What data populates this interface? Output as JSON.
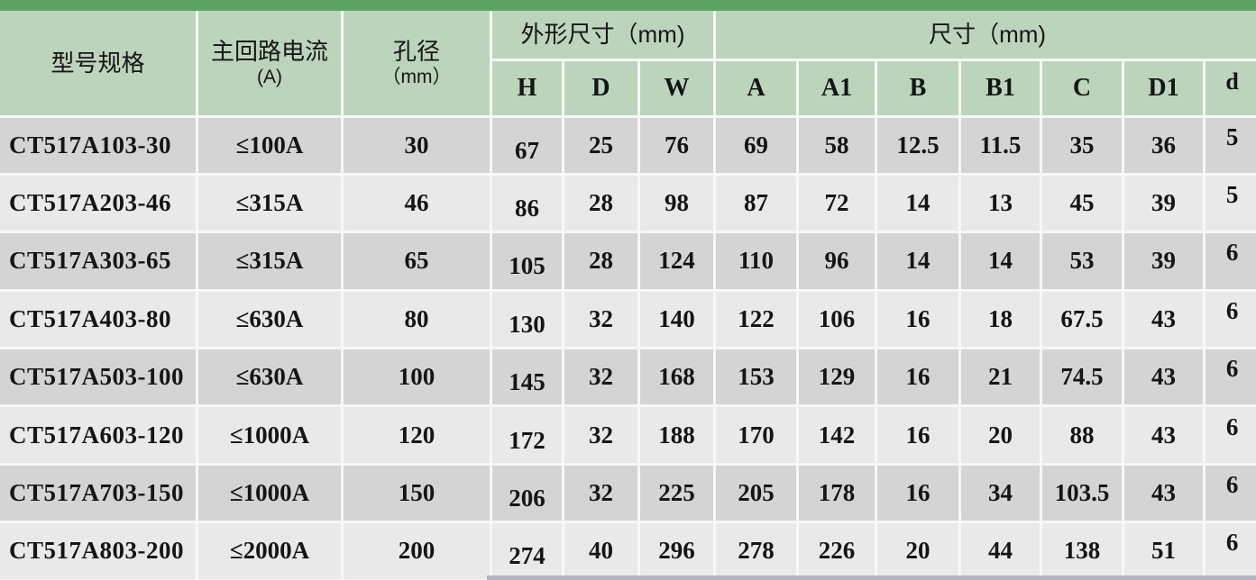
{
  "palette": {
    "top_bar": "#5ca263",
    "header_bg": "#bcd4bb",
    "row_dark": "#d4d4d5",
    "row_light": "#e9e9ea",
    "grid_line": "#f7f7f5",
    "text": "#151515",
    "bottom_strip": "#b4b6c5"
  },
  "table": {
    "headers": {
      "model": "型号规格",
      "current_line1": "主回路电流",
      "current_line2": "(A)",
      "hole_line1": "孔径",
      "hole_line2": "（mm）",
      "outline_group": "外形尺寸（mm)",
      "dims_group": "尺寸（mm)",
      "sub": [
        "H",
        "D",
        "W",
        "A",
        "A1",
        "B",
        "B1",
        "C",
        "D1",
        "d"
      ]
    },
    "rows": [
      {
        "model": "CT517A103-30",
        "current": "≤100A",
        "hole": "30",
        "values": [
          "67",
          "25",
          "76",
          "69",
          "58",
          "12.5",
          "11.5",
          "35",
          "36",
          "5"
        ]
      },
      {
        "model": "CT517A203-46",
        "current": "≤315A",
        "hole": "46",
        "values": [
          "86",
          "28",
          "98",
          "87",
          "72",
          "14",
          "13",
          "45",
          "39",
          "5"
        ]
      },
      {
        "model": "CT517A303-65",
        "current": "≤315A",
        "hole": "65",
        "values": [
          "105",
          "28",
          "124",
          "110",
          "96",
          "14",
          "14",
          "53",
          "39",
          "6"
        ]
      },
      {
        "model": "CT517A403-80",
        "current": "≤630A",
        "hole": "80",
        "values": [
          "130",
          "32",
          "140",
          "122",
          "106",
          "16",
          "18",
          "67.5",
          "43",
          "6"
        ]
      },
      {
        "model": "CT517A503-100",
        "current": "≤630A",
        "hole": "100",
        "values": [
          "145",
          "32",
          "168",
          "153",
          "129",
          "16",
          "21",
          "74.5",
          "43",
          "6"
        ]
      },
      {
        "model": "CT517A603-120",
        "current": "≤1000A",
        "hole": "120",
        "values": [
          "172",
          "32",
          "188",
          "170",
          "142",
          "16",
          "20",
          "88",
          "43",
          "6"
        ]
      },
      {
        "model": "CT517A703-150",
        "current": "≤1000A",
        "hole": "150",
        "values": [
          "206",
          "32",
          "225",
          "205",
          "178",
          "16",
          "34",
          "103.5",
          "43",
          "6"
        ]
      },
      {
        "model": "CT517A803-200",
        "current": "≤2000A",
        "hole": "200",
        "values": [
          "274",
          "40",
          "296",
          "278",
          "226",
          "20",
          "44",
          "138",
          "51",
          "6"
        ]
      }
    ]
  }
}
